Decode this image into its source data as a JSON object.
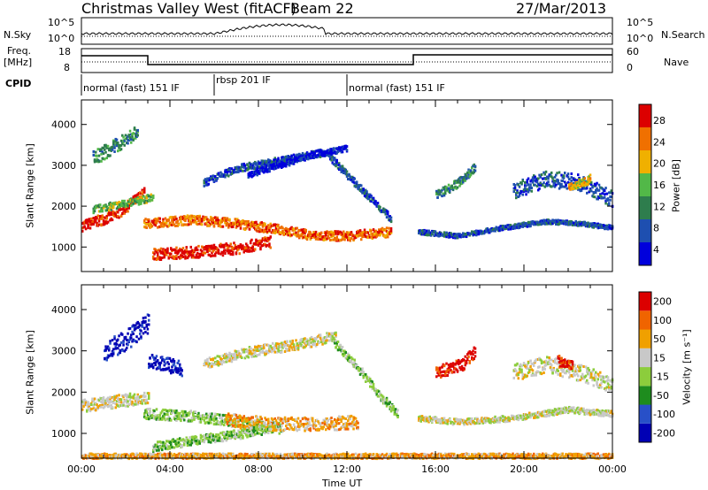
{
  "header": {
    "station": "Christmas Valley West (fitACF)",
    "beam": "Beam 22",
    "date": "27/Mar/2013"
  },
  "summary_panel": {
    "left_label": "N.Sky",
    "right_label": "N.Search",
    "left_ticks": [
      "10^5",
      "10^0"
    ],
    "right_ticks": [
      "10^5",
      "10^0"
    ]
  },
  "freq_panel": {
    "left_label_1": "Freq.",
    "left_label_2": "[MHz]",
    "right_label": "Nave",
    "left_ticks": [
      "18",
      "8"
    ],
    "right_ticks": [
      "60",
      "0"
    ]
  },
  "cpid": {
    "label": "CPID",
    "modes": [
      "normal (fast) 151 IF",
      "rbsp 201 IF",
      "normal (fast) 151 IF"
    ]
  },
  "colors": {
    "power": [
      "#0000dc",
      "#1e4fb0",
      "#2e7d4d",
      "#52b848",
      "#f0b000",
      "#f07000",
      "#dc0000"
    ],
    "velocity": [
      "#0000b4",
      "#2850c8",
      "#1e8c1e",
      "#8ccd3c",
      "#c8c8c8",
      "#f0a000",
      "#f06400",
      "#dc0000"
    ]
  },
  "chart_data": [
    {
      "type": "heatmap",
      "panel": "power",
      "ylabel": "Slant Range [km]",
      "yticks": [
        "1000",
        "2000",
        "3000",
        "4000"
      ],
      "ylim": [
        400,
        4600
      ],
      "xlim": [
        0,
        24
      ],
      "colorbar_label": "Power [dB]",
      "colorbar_ticks": [
        "4",
        "8",
        "12",
        "16",
        "20",
        "24",
        "28"
      ],
      "bands": [
        {
          "x": [
            0.0,
            1.5,
            2.8
          ],
          "y": [
            1550,
            1800,
            2350
          ],
          "width": 260,
          "level": 6
        },
        {
          "x": [
            0.5,
            2.5,
            3.2
          ],
          "y": [
            1950,
            2150,
            2250
          ],
          "width": 180,
          "level": 3
        },
        {
          "x": [
            2.8,
            5.0,
            7.0,
            9.0,
            10.5,
            12.0,
            14.0
          ],
          "y": [
            1600,
            1700,
            1600,
            1450,
            1300,
            1300,
            1400
          ],
          "width": 230,
          "level": 5
        },
        {
          "x": [
            3.2,
            5.0,
            7.0,
            8.5
          ],
          "y": [
            850,
            900,
            1000,
            1150
          ],
          "width": 280,
          "level": 6
        },
        {
          "x": [
            5.5,
            7.0,
            9.0,
            11.0,
            12.5,
            14.0
          ],
          "y": [
            2600,
            2950,
            3150,
            3350,
            2500,
            1700
          ],
          "width": 180,
          "level": 1
        },
        {
          "x": [
            7.5,
            9.0,
            10.5,
            12.0
          ],
          "y": [
            2800,
            3050,
            3300,
            3450
          ],
          "width": 150,
          "level": 0
        },
        {
          "x": [
            0.5,
            1.5,
            2.5
          ],
          "y": [
            3200,
            3500,
            3850
          ],
          "width": 350,
          "level": 2
        },
        {
          "x": [
            15.2,
            17.0,
            19.0,
            21.0,
            22.5,
            24.0
          ],
          "y": [
            1400,
            1300,
            1500,
            1650,
            1600,
            1500
          ],
          "width": 110,
          "level": 1
        },
        {
          "x": [
            16.0,
            17.0,
            17.8
          ],
          "y": [
            2300,
            2600,
            3000
          ],
          "width": 220,
          "level": 2
        },
        {
          "x": [
            19.5,
            21.0,
            22.5,
            24.0
          ],
          "y": [
            2400,
            2700,
            2600,
            2200
          ],
          "width": 400,
          "level": 1
        },
        {
          "x": [
            22.0,
            23.0
          ],
          "y": [
            2500,
            2700
          ],
          "width": 220,
          "level": 4
        }
      ]
    },
    {
      "type": "heatmap",
      "panel": "velocity",
      "ylabel": "Slant Range [km]",
      "yticks": [
        "1000",
        "2000",
        "3000",
        "4000"
      ],
      "ylim": [
        400,
        4600
      ],
      "xlim": [
        0,
        24
      ],
      "xlabel": "Time UT",
      "xticks": [
        "00:00",
        "04:00",
        "08:00",
        "12:00",
        "16:00",
        "20:00",
        "00:00"
      ],
      "colorbar_label": "Velocity [m s⁻¹]",
      "colorbar_ticks": [
        "-200",
        "-100",
        "-50",
        "-15",
        "15",
        "50",
        "100",
        "200"
      ],
      "bands": [
        {
          "x": [
            0.0,
            1.5,
            3.0
          ],
          "y": [
            1700,
            1800,
            1900
          ],
          "width": 300,
          "level": 4
        },
        {
          "x": [
            2.8,
            5.0,
            7.0,
            9.0
          ],
          "y": [
            1500,
            1450,
            1300,
            1150
          ],
          "width": 260,
          "level": 3
        },
        {
          "x": [
            6.5,
            8.5,
            10.5,
            12.5
          ],
          "y": [
            1350,
            1250,
            1250,
            1300
          ],
          "width": 330,
          "level": 5
        },
        {
          "x": [
            3.2,
            5.0,
            7.0,
            8.5
          ],
          "y": [
            700,
            850,
            1000,
            1150
          ],
          "width": 220,
          "level": 3
        },
        {
          "x": [
            1.0,
            2.0,
            3.0
          ],
          "y": [
            3000,
            3300,
            3700
          ],
          "width": 500,
          "level": 0
        },
        {
          "x": [
            3.0,
            4.5
          ],
          "y": [
            2800,
            2600
          ],
          "width": 350,
          "level": 0
        },
        {
          "x": [
            5.5,
            7.5,
            10.0,
            11.5
          ],
          "y": [
            2700,
            3000,
            3200,
            3400
          ],
          "width": 250,
          "level": 4
        },
        {
          "x": [
            11.3,
            12.5,
            13.5,
            14.3
          ],
          "y": [
            3300,
            2600,
            1900,
            1500
          ],
          "width": 220,
          "level": 3
        },
        {
          "x": [
            15.2,
            17.0,
            19.5,
            22.0,
            24.0
          ],
          "y": [
            1400,
            1300,
            1400,
            1600,
            1500
          ],
          "width": 140,
          "level": 4
        },
        {
          "x": [
            16.0,
            17.2,
            17.8
          ],
          "y": [
            2500,
            2700,
            3050
          ],
          "width": 300,
          "level": 7
        },
        {
          "x": [
            19.5,
            21.0,
            22.5,
            24.0
          ],
          "y": [
            2500,
            2700,
            2500,
            2200
          ],
          "width": 400,
          "level": 4
        },
        {
          "x": [
            21.5,
            22.2
          ],
          "y": [
            2800,
            2700
          ],
          "width": 260,
          "level": 7
        },
        {
          "x": [
            0.0,
            12.0,
            24.0
          ],
          "y": [
            480,
            480,
            480
          ],
          "width": 120,
          "level": 5
        }
      ]
    }
  ]
}
